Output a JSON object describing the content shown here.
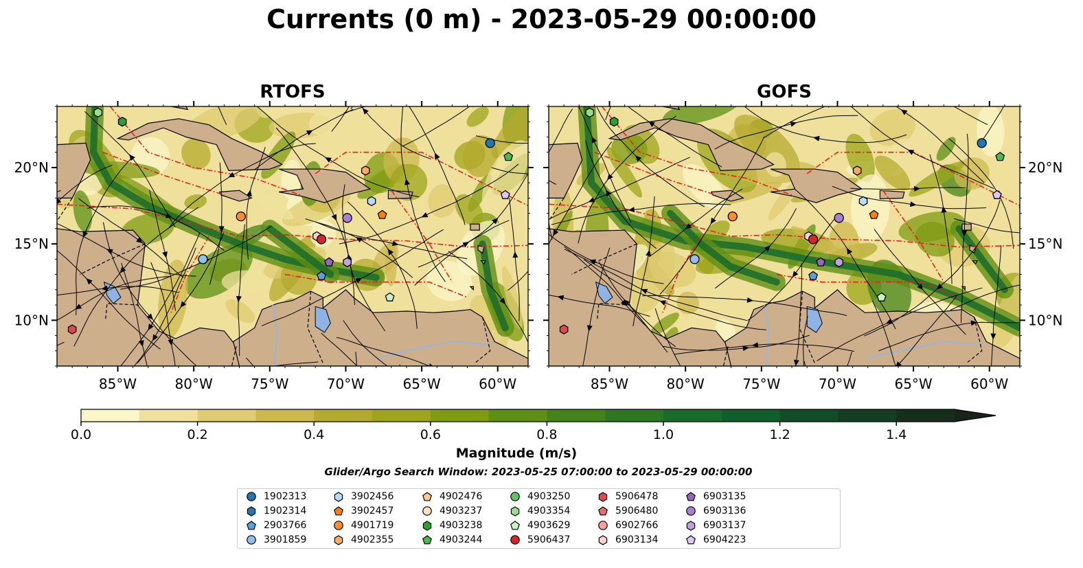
{
  "title": "Currents (0 m) - 2023-05-29 00:00:00",
  "panels": [
    {
      "title": "RTOFS"
    },
    {
      "title": "GOFS"
    }
  ],
  "x_ticks": [
    "85°W",
    "80°W",
    "75°W",
    "70°W",
    "65°W",
    "60°W"
  ],
  "y_ticks": [
    "20°N",
    "15°N",
    "10°N"
  ],
  "colorbar": {
    "label": "Magnitude (m/s)",
    "ticks": [
      "0.0",
      "0.2",
      "0.4",
      "0.6",
      "0.8",
      "1.0",
      "1.2",
      "1.4"
    ],
    "colors": [
      "#fbf6c9",
      "#efe19c",
      "#dfcb72",
      "#cdb84d",
      "#b4aa2d",
      "#9ea41c",
      "#7f9b12",
      "#5f8f14",
      "#448319",
      "#2d7722",
      "#196b2c",
      "#0f5e2c",
      "#124d28",
      "#153d22",
      "#172e1b",
      "#17241a"
    ]
  },
  "search_window": "Glider/Argo Search Window: 2023-05-25 07:00:00 to 2023-05-29 00:00:00",
  "legend": [
    {
      "id": "1902313",
      "marker": "circle",
      "color": "#1f77b4"
    },
    {
      "id": "1902314",
      "marker": "hexagon",
      "color": "#1f77b4"
    },
    {
      "id": "2903766",
      "marker": "pentagon",
      "color": "#5aa0dc"
    },
    {
      "id": "3901859",
      "marker": "circle",
      "color": "#8ec1ee"
    },
    {
      "id": "3902456",
      "marker": "hexagon",
      "color": "#b7dcf6"
    },
    {
      "id": "3902457",
      "marker": "pentagon",
      "color": "#ff7f0e"
    },
    {
      "id": "4901719",
      "marker": "circle",
      "color": "#ff8c2e"
    },
    {
      "id": "4902355",
      "marker": "hexagon",
      "color": "#ffaa60"
    },
    {
      "id": "4902476",
      "marker": "pentagon",
      "color": "#ffc98e"
    },
    {
      "id": "4903237",
      "marker": "circle",
      "color": "#ffe0c0"
    },
    {
      "id": "4903238",
      "marker": "hexagon",
      "color": "#2ca02c"
    },
    {
      "id": "4903244",
      "marker": "pentagon",
      "color": "#4fb84f"
    },
    {
      "id": "4903250",
      "marker": "circle",
      "color": "#62c462"
    },
    {
      "id": "4903354",
      "marker": "hexagon",
      "color": "#98df8a"
    },
    {
      "id": "4903629",
      "marker": "pentagon",
      "color": "#c8f2c0"
    },
    {
      "id": "5906437",
      "marker": "circle",
      "color": "#d62728"
    },
    {
      "id": "5906478",
      "marker": "hexagon",
      "color": "#e0484a"
    },
    {
      "id": "5906480",
      "marker": "pentagon",
      "color": "#ea6b6d"
    },
    {
      "id": "6902766",
      "marker": "circle",
      "color": "#f4a09e"
    },
    {
      "id": "6903134",
      "marker": "hexagon",
      "color": "#fbd0cf"
    },
    {
      "id": "6903135",
      "marker": "pentagon",
      "color": "#9467bd"
    },
    {
      "id": "6903136",
      "marker": "circle",
      "color": "#a882d0"
    },
    {
      "id": "6903137",
      "marker": "hexagon",
      "color": "#c0a2e0"
    },
    {
      "id": "6904223",
      "marker": "pentagon",
      "color": "#dcc8f2"
    }
  ],
  "chart_data": [
    {
      "type": "map",
      "title": "RTOFS",
      "lon_range": [
        -89,
        -58
      ],
      "lat_range": [
        7,
        24
      ],
      "xticks": [
        -85,
        -80,
        -75,
        -70,
        -65,
        -60
      ],
      "yticks": [
        10,
        15,
        20
      ],
      "colorbar_range": [
        0,
        1.5
      ],
      "floats": [
        {
          "id": "4903354",
          "lon": -86.3,
          "lat": 23.6
        },
        {
          "id": "4903238",
          "lon": -84.7,
          "lat": 23.0
        },
        {
          "id": "1902313",
          "lon": -60.5,
          "lat": 21.6
        },
        {
          "id": "4903244",
          "lon": -59.3,
          "lat": 20.7
        },
        {
          "id": "4902355",
          "lon": -68.7,
          "lat": 19.8
        },
        {
          "id": "6904223",
          "lon": -59.5,
          "lat": 18.2
        },
        {
          "id": "3902456",
          "lon": -68.3,
          "lat": 17.8
        },
        {
          "id": "4901719",
          "lon": -76.9,
          "lat": 16.8
        },
        {
          "id": "6903136",
          "lon": -69.9,
          "lat": 16.7
        },
        {
          "id": "3902457",
          "lon": -67.6,
          "lat": 16.9
        },
        {
          "id": "6903134",
          "lon": -71.9,
          "lat": 15.5
        },
        {
          "id": "5906437",
          "lon": -71.6,
          "lat": 15.3
        },
        {
          "id": "3901859",
          "lon": -79.4,
          "lat": 14.0
        },
        {
          "id": "6903135",
          "lon": -71.1,
          "lat": 13.8
        },
        {
          "id": "6903137",
          "lon": -69.9,
          "lat": 13.8
        },
        {
          "id": "2903766",
          "lon": -71.6,
          "lat": 12.9
        },
        {
          "id": "4903629",
          "lon": -67.1,
          "lat": 11.5
        },
        {
          "id": "5906478",
          "lon": -88.0,
          "lat": 9.4
        }
      ]
    },
    {
      "type": "map",
      "title": "GOFS",
      "lon_range": [
        -89,
        -58
      ],
      "lat_range": [
        7,
        24
      ],
      "xticks": [
        -85,
        -80,
        -75,
        -70,
        -65,
        -60
      ],
      "yticks": [
        10,
        15,
        20
      ],
      "colorbar_range": [
        0,
        1.5
      ],
      "floats": [
        {
          "id": "4903354",
          "lon": -86.3,
          "lat": 23.6
        },
        {
          "id": "4903238",
          "lon": -84.7,
          "lat": 23.0
        },
        {
          "id": "1902313",
          "lon": -60.5,
          "lat": 21.6
        },
        {
          "id": "4903244",
          "lon": -59.3,
          "lat": 20.7
        },
        {
          "id": "4902355",
          "lon": -68.7,
          "lat": 19.8
        },
        {
          "id": "6904223",
          "lon": -59.5,
          "lat": 18.2
        },
        {
          "id": "3902456",
          "lon": -68.3,
          "lat": 17.8
        },
        {
          "id": "4901719",
          "lon": -76.9,
          "lat": 16.8
        },
        {
          "id": "6903136",
          "lon": -69.9,
          "lat": 16.7
        },
        {
          "id": "3902457",
          "lon": -67.6,
          "lat": 16.9
        },
        {
          "id": "6903134",
          "lon": -71.9,
          "lat": 15.5
        },
        {
          "id": "5906437",
          "lon": -71.6,
          "lat": 15.3
        },
        {
          "id": "3901859",
          "lon": -79.4,
          "lat": 14.0
        },
        {
          "id": "6903135",
          "lon": -71.1,
          "lat": 13.8
        },
        {
          "id": "6903137",
          "lon": -69.9,
          "lat": 13.8
        },
        {
          "id": "2903766",
          "lon": -71.6,
          "lat": 12.9
        },
        {
          "id": "4903629",
          "lon": -67.1,
          "lat": 11.5
        },
        {
          "id": "5906478",
          "lon": -88.0,
          "lat": 9.4
        }
      ]
    }
  ]
}
